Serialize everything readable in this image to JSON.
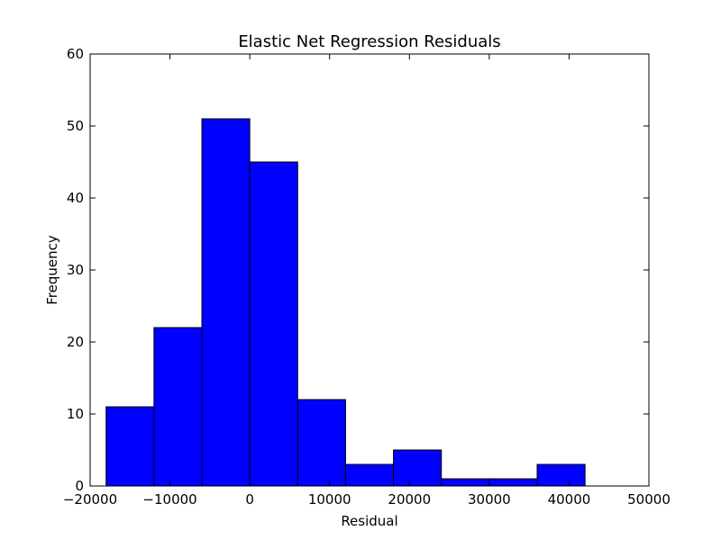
{
  "chart_data": {
    "type": "bar",
    "title": "Elastic Net Regression Residuals",
    "xlabel": "Residual",
    "ylabel": "Frequency",
    "xlim": [
      -20000,
      50000
    ],
    "ylim": [
      0,
      60
    ],
    "xticks": [
      -20000,
      -10000,
      0,
      10000,
      20000,
      30000,
      40000,
      50000
    ],
    "xtick_labels": [
      "−20000",
      "−10000",
      "0",
      "10000",
      "20000",
      "30000",
      "40000",
      "50000"
    ],
    "yticks": [
      0,
      10,
      20,
      30,
      40,
      50,
      60
    ],
    "ytick_labels": [
      "0",
      "10",
      "20",
      "30",
      "40",
      "50",
      "60"
    ],
    "bins": [
      {
        "x0": -18000,
        "x1": -12000,
        "count": 11
      },
      {
        "x0": -12000,
        "x1": -6000,
        "count": 22
      },
      {
        "x0": -6000,
        "x1": 0,
        "count": 51
      },
      {
        "x0": 0,
        "x1": 6000,
        "count": 45
      },
      {
        "x0": 6000,
        "x1": 12000,
        "count": 12
      },
      {
        "x0": 12000,
        "x1": 18000,
        "count": 3
      },
      {
        "x0": 18000,
        "x1": 24000,
        "count": 5
      },
      {
        "x0": 24000,
        "x1": 30000,
        "count": 1
      },
      {
        "x0": 30000,
        "x1": 36000,
        "count": 1
      },
      {
        "x0": 36000,
        "x1": 42000,
        "count": 3
      }
    ],
    "bar_color": "#0000ff",
    "edge_color": "#000000",
    "grid": false,
    "legend": "none"
  }
}
